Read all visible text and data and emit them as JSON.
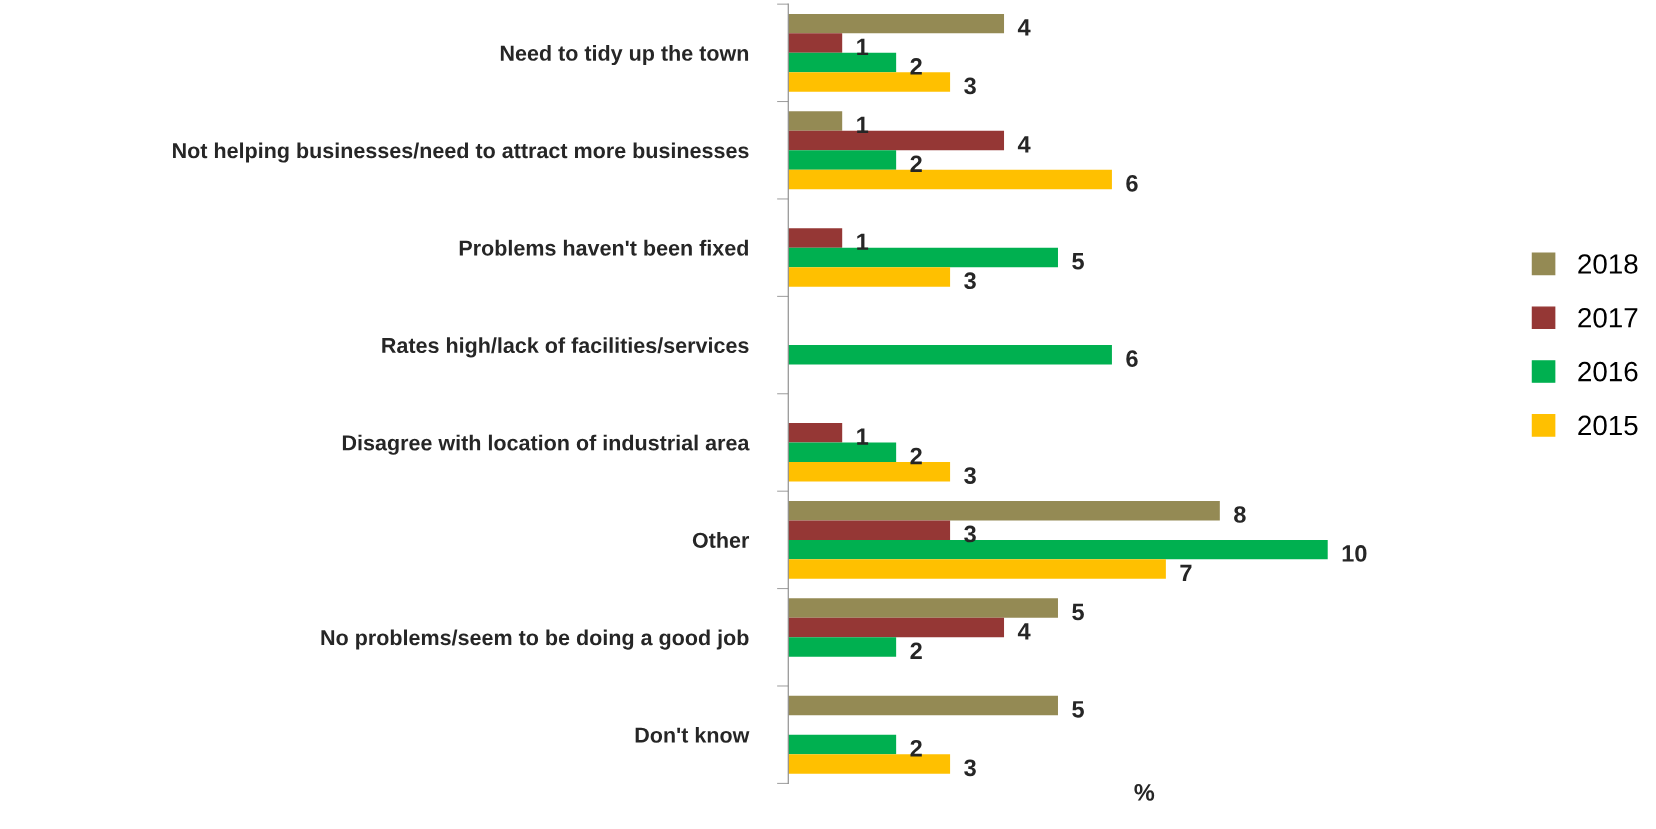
{
  "chart_data": {
    "type": "bar",
    "orientation": "horizontal",
    "xlabel": "%",
    "categories": [
      "Need to tidy up the town",
      "Not helping businesses/need to attract more businesses",
      "Problems haven't been fixed",
      "Rates high/lack of facilities/services",
      "Disagree with location of industrial area",
      "Other",
      "No problems/seem to be doing a good job",
      "Don't know"
    ],
    "series": [
      {
        "name": "2018",
        "color": "#948a54",
        "values": [
          4,
          1,
          null,
          null,
          null,
          8,
          5,
          5
        ]
      },
      {
        "name": "2017",
        "color": "#953735",
        "values": [
          1,
          4,
          1,
          null,
          1,
          3,
          4,
          null
        ]
      },
      {
        "name": "2016",
        "color": "#00b050",
        "values": [
          2,
          2,
          5,
          6,
          2,
          10,
          2,
          2
        ]
      },
      {
        "name": "2015",
        "color": "#ffc000",
        "values": [
          3,
          6,
          3,
          null,
          3,
          7,
          null,
          3
        ]
      }
    ],
    "data_labels": true,
    "legend": "right",
    "grid": false
  }
}
